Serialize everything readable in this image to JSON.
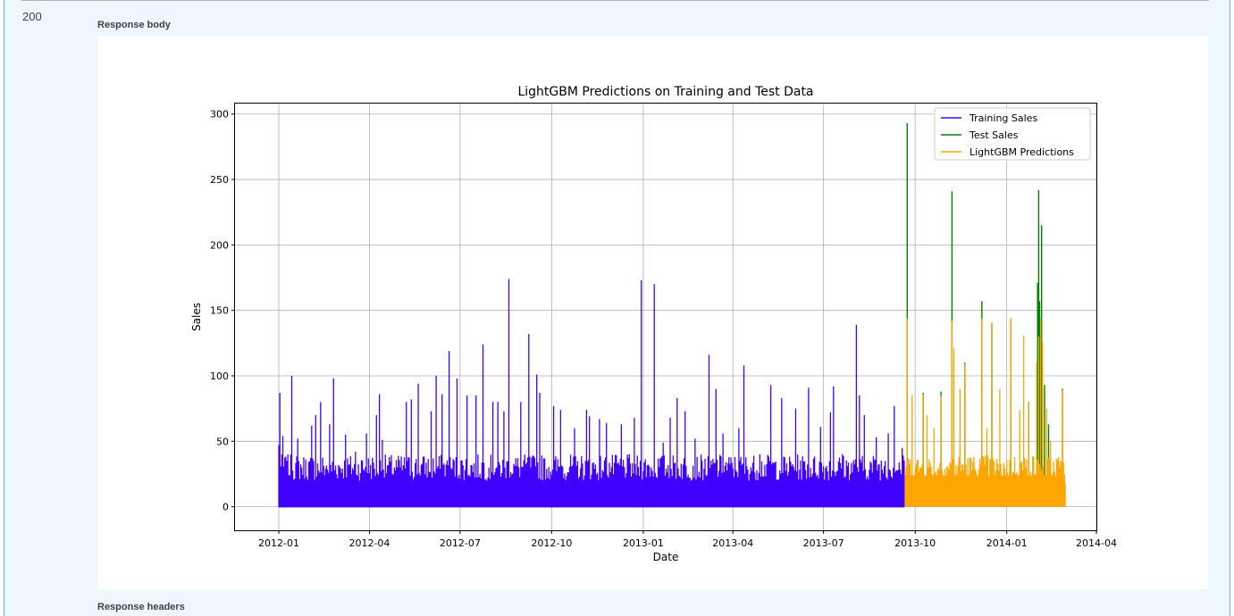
{
  "response": {
    "status_code": "200",
    "body_label": "Response body",
    "headers_label": "Response headers"
  },
  "colors": {
    "panel_bg": "#eef6ff",
    "panel_border": "#61affe",
    "training": "#4000ff",
    "test": "#008000",
    "prediction": "#ffa500"
  },
  "chart_data": {
    "type": "line",
    "title": "LightGBM Predictions on Training and Test Data",
    "xlabel": "Date",
    "ylabel": "Sales",
    "x_ticks": [
      "2012-01",
      "2012-04",
      "2012-07",
      "2012-10",
      "2013-01",
      "2013-04",
      "2013-07",
      "2013-10",
      "2014-01",
      "2014-04"
    ],
    "y_ticks": [
      0,
      50,
      100,
      150,
      200,
      250,
      300
    ],
    "xlim": [
      "2011-11-18",
      "2014-04-01"
    ],
    "ylim": [
      -18,
      308
    ],
    "grid": true,
    "legend_position": "top-right",
    "series": [
      {
        "name": "Training Sales",
        "color": "#4000ff",
        "x_range": [
          "2012-01-01",
          "2013-09-20"
        ],
        "baseline": 0,
        "typical_band": [
          20,
          40
        ],
        "peaks": [
          [
            "2012-01-01",
            47
          ],
          [
            "2012-01-02",
            87
          ],
          [
            "2012-01-05",
            54
          ],
          [
            "2012-01-09",
            35
          ],
          [
            "2012-01-14",
            100
          ],
          [
            "2012-01-20",
            52
          ],
          [
            "2012-02-03",
            62
          ],
          [
            "2012-02-07",
            70
          ],
          [
            "2012-02-12",
            80
          ],
          [
            "2012-02-21",
            63
          ],
          [
            "2012-02-25",
            98
          ],
          [
            "2012-03-08",
            55
          ],
          [
            "2012-03-18",
            42
          ],
          [
            "2012-03-29",
            56
          ],
          [
            "2012-04-08",
            70
          ],
          [
            "2012-04-11",
            86
          ],
          [
            "2012-04-14",
            51
          ],
          [
            "2012-05-08",
            80
          ],
          [
            "2012-05-13",
            82
          ],
          [
            "2012-05-20",
            94
          ],
          [
            "2012-06-02",
            73
          ],
          [
            "2012-06-07",
            100
          ],
          [
            "2012-06-13",
            86
          ],
          [
            "2012-06-20",
            119
          ],
          [
            "2012-06-28",
            98
          ],
          [
            "2012-07-08",
            85
          ],
          [
            "2012-07-17",
            85
          ],
          [
            "2012-07-24",
            124
          ],
          [
            "2012-08-03",
            80
          ],
          [
            "2012-08-08",
            80
          ],
          [
            "2012-08-14",
            73
          ],
          [
            "2012-08-19",
            174
          ],
          [
            "2012-08-31",
            80
          ],
          [
            "2012-09-08",
            132
          ],
          [
            "2012-09-16",
            101
          ],
          [
            "2012-09-19",
            87
          ],
          [
            "2012-10-03",
            77
          ],
          [
            "2012-10-10",
            74
          ],
          [
            "2012-10-24",
            60
          ],
          [
            "2012-11-05",
            74
          ],
          [
            "2012-11-08",
            69
          ],
          [
            "2012-11-18",
            67
          ],
          [
            "2012-11-25",
            64
          ],
          [
            "2012-12-10",
            63
          ],
          [
            "2012-12-23",
            68
          ],
          [
            "2012-12-30",
            173
          ],
          [
            "2013-01-12",
            170
          ],
          [
            "2013-01-21",
            49
          ],
          [
            "2013-01-28",
            68
          ],
          [
            "2013-02-04",
            83
          ],
          [
            "2013-02-12",
            73
          ],
          [
            "2013-02-22",
            52
          ],
          [
            "2013-03-08",
            116
          ],
          [
            "2013-03-15",
            90
          ],
          [
            "2013-03-22",
            56
          ],
          [
            "2013-04-07",
            60
          ],
          [
            "2013-04-12",
            108
          ],
          [
            "2013-04-28",
            40
          ],
          [
            "2013-05-09",
            93
          ],
          [
            "2013-05-20",
            83
          ],
          [
            "2013-06-03",
            75
          ],
          [
            "2013-06-16",
            91
          ],
          [
            "2013-06-28",
            61
          ],
          [
            "2013-07-08",
            72
          ],
          [
            "2013-07-11",
            92
          ],
          [
            "2013-07-20",
            40
          ],
          [
            "2013-08-03",
            139
          ],
          [
            "2013-08-06",
            85
          ],
          [
            "2013-08-11",
            70
          ],
          [
            "2013-08-23",
            53
          ],
          [
            "2013-09-01",
            35
          ],
          [
            "2013-09-04",
            56
          ],
          [
            "2013-09-10",
            77
          ],
          [
            "2013-09-18",
            45
          ]
        ]
      },
      {
        "name": "Test Sales",
        "color": "#008000",
        "x_range": [
          "2013-09-21",
          "2014-02-28"
        ],
        "peaks": [
          [
            "2013-09-23",
            293
          ],
          [
            "2013-10-09",
            87
          ],
          [
            "2013-10-27",
            88
          ],
          [
            "2013-11-07",
            241
          ],
          [
            "2013-11-20",
            110
          ],
          [
            "2013-12-07",
            157
          ],
          [
            "2013-12-17",
            140
          ],
          [
            "2014-01-05",
            144
          ],
          [
            "2014-01-23",
            80
          ],
          [
            "2014-02-01",
            171
          ],
          [
            "2014-02-02",
            242
          ],
          [
            "2014-02-03",
            157
          ],
          [
            "2014-02-05",
            215
          ],
          [
            "2014-02-08",
            93
          ],
          [
            "2014-02-12",
            63
          ],
          [
            "2014-02-26",
            90
          ]
        ]
      },
      {
        "name": "LightGBM Predictions",
        "color": "#ffa500",
        "x_range": [
          "2013-09-21",
          "2014-02-28"
        ],
        "typical_band": [
          20,
          40
        ],
        "peaks": [
          [
            "2013-09-23",
            144
          ],
          [
            "2013-09-28",
            85
          ],
          [
            "2013-10-09",
            86
          ],
          [
            "2013-10-13",
            70
          ],
          [
            "2013-10-20",
            60
          ],
          [
            "2013-10-27",
            85
          ],
          [
            "2013-11-07",
            142
          ],
          [
            "2013-11-09",
            121
          ],
          [
            "2013-11-15",
            90
          ],
          [
            "2013-11-20",
            109
          ],
          [
            "2013-12-07",
            144
          ],
          [
            "2013-12-12",
            60
          ],
          [
            "2013-12-17",
            140
          ],
          [
            "2013-12-25",
            90
          ],
          [
            "2014-01-05",
            144
          ],
          [
            "2014-01-14",
            74
          ],
          [
            "2014-01-18",
            131
          ],
          [
            "2014-01-23",
            80
          ],
          [
            "2014-01-31",
            110
          ],
          [
            "2014-02-02",
            130
          ],
          [
            "2014-02-04",
            144
          ],
          [
            "2014-02-06",
            126
          ],
          [
            "2014-02-10",
            75
          ],
          [
            "2014-02-14",
            50
          ],
          [
            "2014-02-22",
            38
          ],
          [
            "2014-02-26",
            89
          ]
        ]
      }
    ]
  }
}
